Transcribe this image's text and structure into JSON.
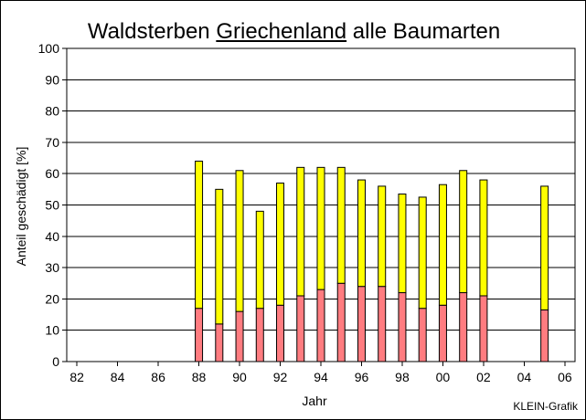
{
  "chart_data": {
    "type": "bar",
    "stacked": true,
    "title_parts": [
      "Waldsterben ",
      "Griechenland",
      " alle Baumarten"
    ],
    "xlabel": "Jahr",
    "ylabel": "Anteil geschädigt [%]",
    "credit": "KLEIN-Grafik",
    "ylim": [
      0,
      100
    ],
    "yticks": [
      0,
      10,
      20,
      30,
      40,
      50,
      60,
      70,
      80,
      90,
      100
    ],
    "xlim": [
      1981.5,
      2006.5
    ],
    "xticks": [
      {
        "year": 1982,
        "label": "82"
      },
      {
        "year": 1984,
        "label": "84"
      },
      {
        "year": 1986,
        "label": "86"
      },
      {
        "year": 1988,
        "label": "88"
      },
      {
        "year": 1990,
        "label": "90"
      },
      {
        "year": 1992,
        "label": "92"
      },
      {
        "year": 1994,
        "label": "94"
      },
      {
        "year": 1996,
        "label": "96"
      },
      {
        "year": 1998,
        "label": "98"
      },
      {
        "year": 2000,
        "label": "00"
      },
      {
        "year": 2002,
        "label": "02"
      },
      {
        "year": 2004,
        "label": "04"
      },
      {
        "year": 2006,
        "label": "06"
      }
    ],
    "grid": true,
    "x": [
      1988,
      1989,
      1990,
      1991,
      1992,
      1993,
      1994,
      1995,
      1996,
      1997,
      1998,
      1999,
      2000,
      2001,
      2002,
      2005
    ],
    "series": [
      {
        "color": "#ff7c80",
        "values": [
          17,
          12,
          16,
          17,
          18,
          21,
          23,
          25,
          24,
          24,
          22,
          17,
          18,
          22,
          21,
          16.5
        ]
      },
      {
        "color": "#ffff00",
        "values": [
          47,
          43,
          45,
          31,
          39,
          41,
          39,
          37,
          34,
          32,
          31.5,
          35.5,
          38.5,
          39,
          37,
          39.5
        ]
      }
    ]
  }
}
